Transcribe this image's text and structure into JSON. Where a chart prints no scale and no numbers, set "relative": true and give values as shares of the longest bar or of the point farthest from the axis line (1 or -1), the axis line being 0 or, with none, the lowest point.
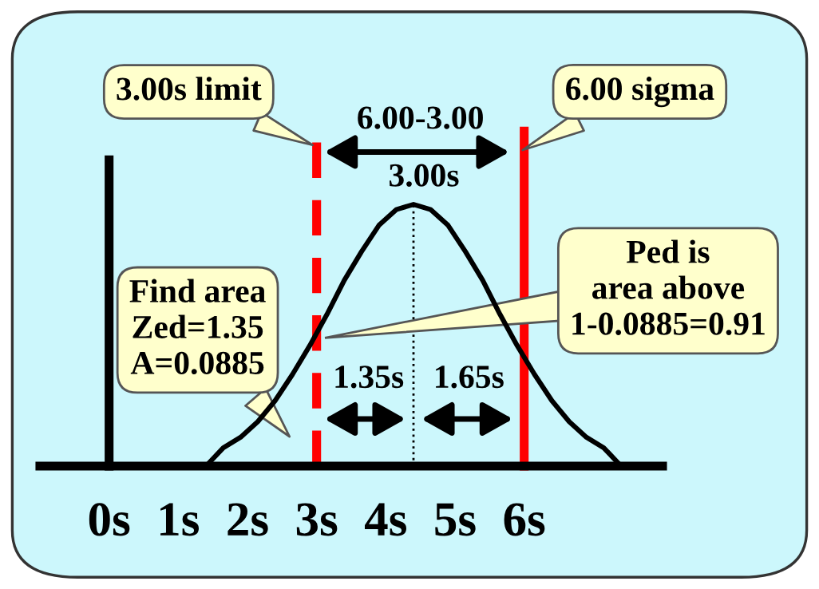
{
  "chart_data": {
    "type": "line",
    "relative": true,
    "x": [
      1.4,
      1.65,
      1.9,
      2.15,
      2.4,
      2.65,
      2.9,
      3.15,
      3.4,
      3.65,
      3.9,
      4.15,
      4.4,
      4.65,
      4.9,
      5.15,
      5.4,
      5.65,
      5.9,
      6.15,
      6.4,
      6.65,
      6.9,
      7.15,
      7.4
    ],
    "series": [
      {
        "color": "#000000",
        "values": [
          0,
          0.07,
          0.11,
          0.17,
          0.25,
          0.35,
          0.46,
          0.58,
          0.71,
          0.82,
          0.92,
          0.98,
          1,
          0.98,
          0.92,
          0.82,
          0.71,
          0.58,
          0.46,
          0.35,
          0.25,
          0.17,
          0.11,
          0.07,
          0
        ]
      }
    ],
    "xlim": [
      -1,
      8
    ],
    "xticks": [
      {
        "value": 0,
        "label": "0s"
      },
      {
        "value": 1,
        "label": "1s"
      },
      {
        "value": 2,
        "label": "2s"
      },
      {
        "value": 3,
        "label": "3s"
      },
      {
        "value": 4,
        "label": "4s"
      },
      {
        "value": 5,
        "label": "5s"
      },
      {
        "value": 6,
        "label": "6s"
      }
    ],
    "ref_lines": [
      {
        "axis": "x",
        "value": 3,
        "label": "3.00s limit",
        "color": "#ff0000",
        "line_style": "dashed"
      },
      {
        "axis": "x",
        "value": 6,
        "label": "6.00 sigma",
        "color": "#ff0000",
        "line_style": "solid"
      },
      {
        "axis": "x",
        "value": 4.4,
        "label": null,
        "color": "#000000",
        "line_style": "dotted"
      }
    ],
    "annotations": [
      "6.00-3.00",
      "3.00s",
      "1.35s",
      "1.65s",
      "Find area\nZed=1.35\nA=0.0885",
      "Ped is\narea above\n1-0.0885=0.91"
    ]
  }
}
